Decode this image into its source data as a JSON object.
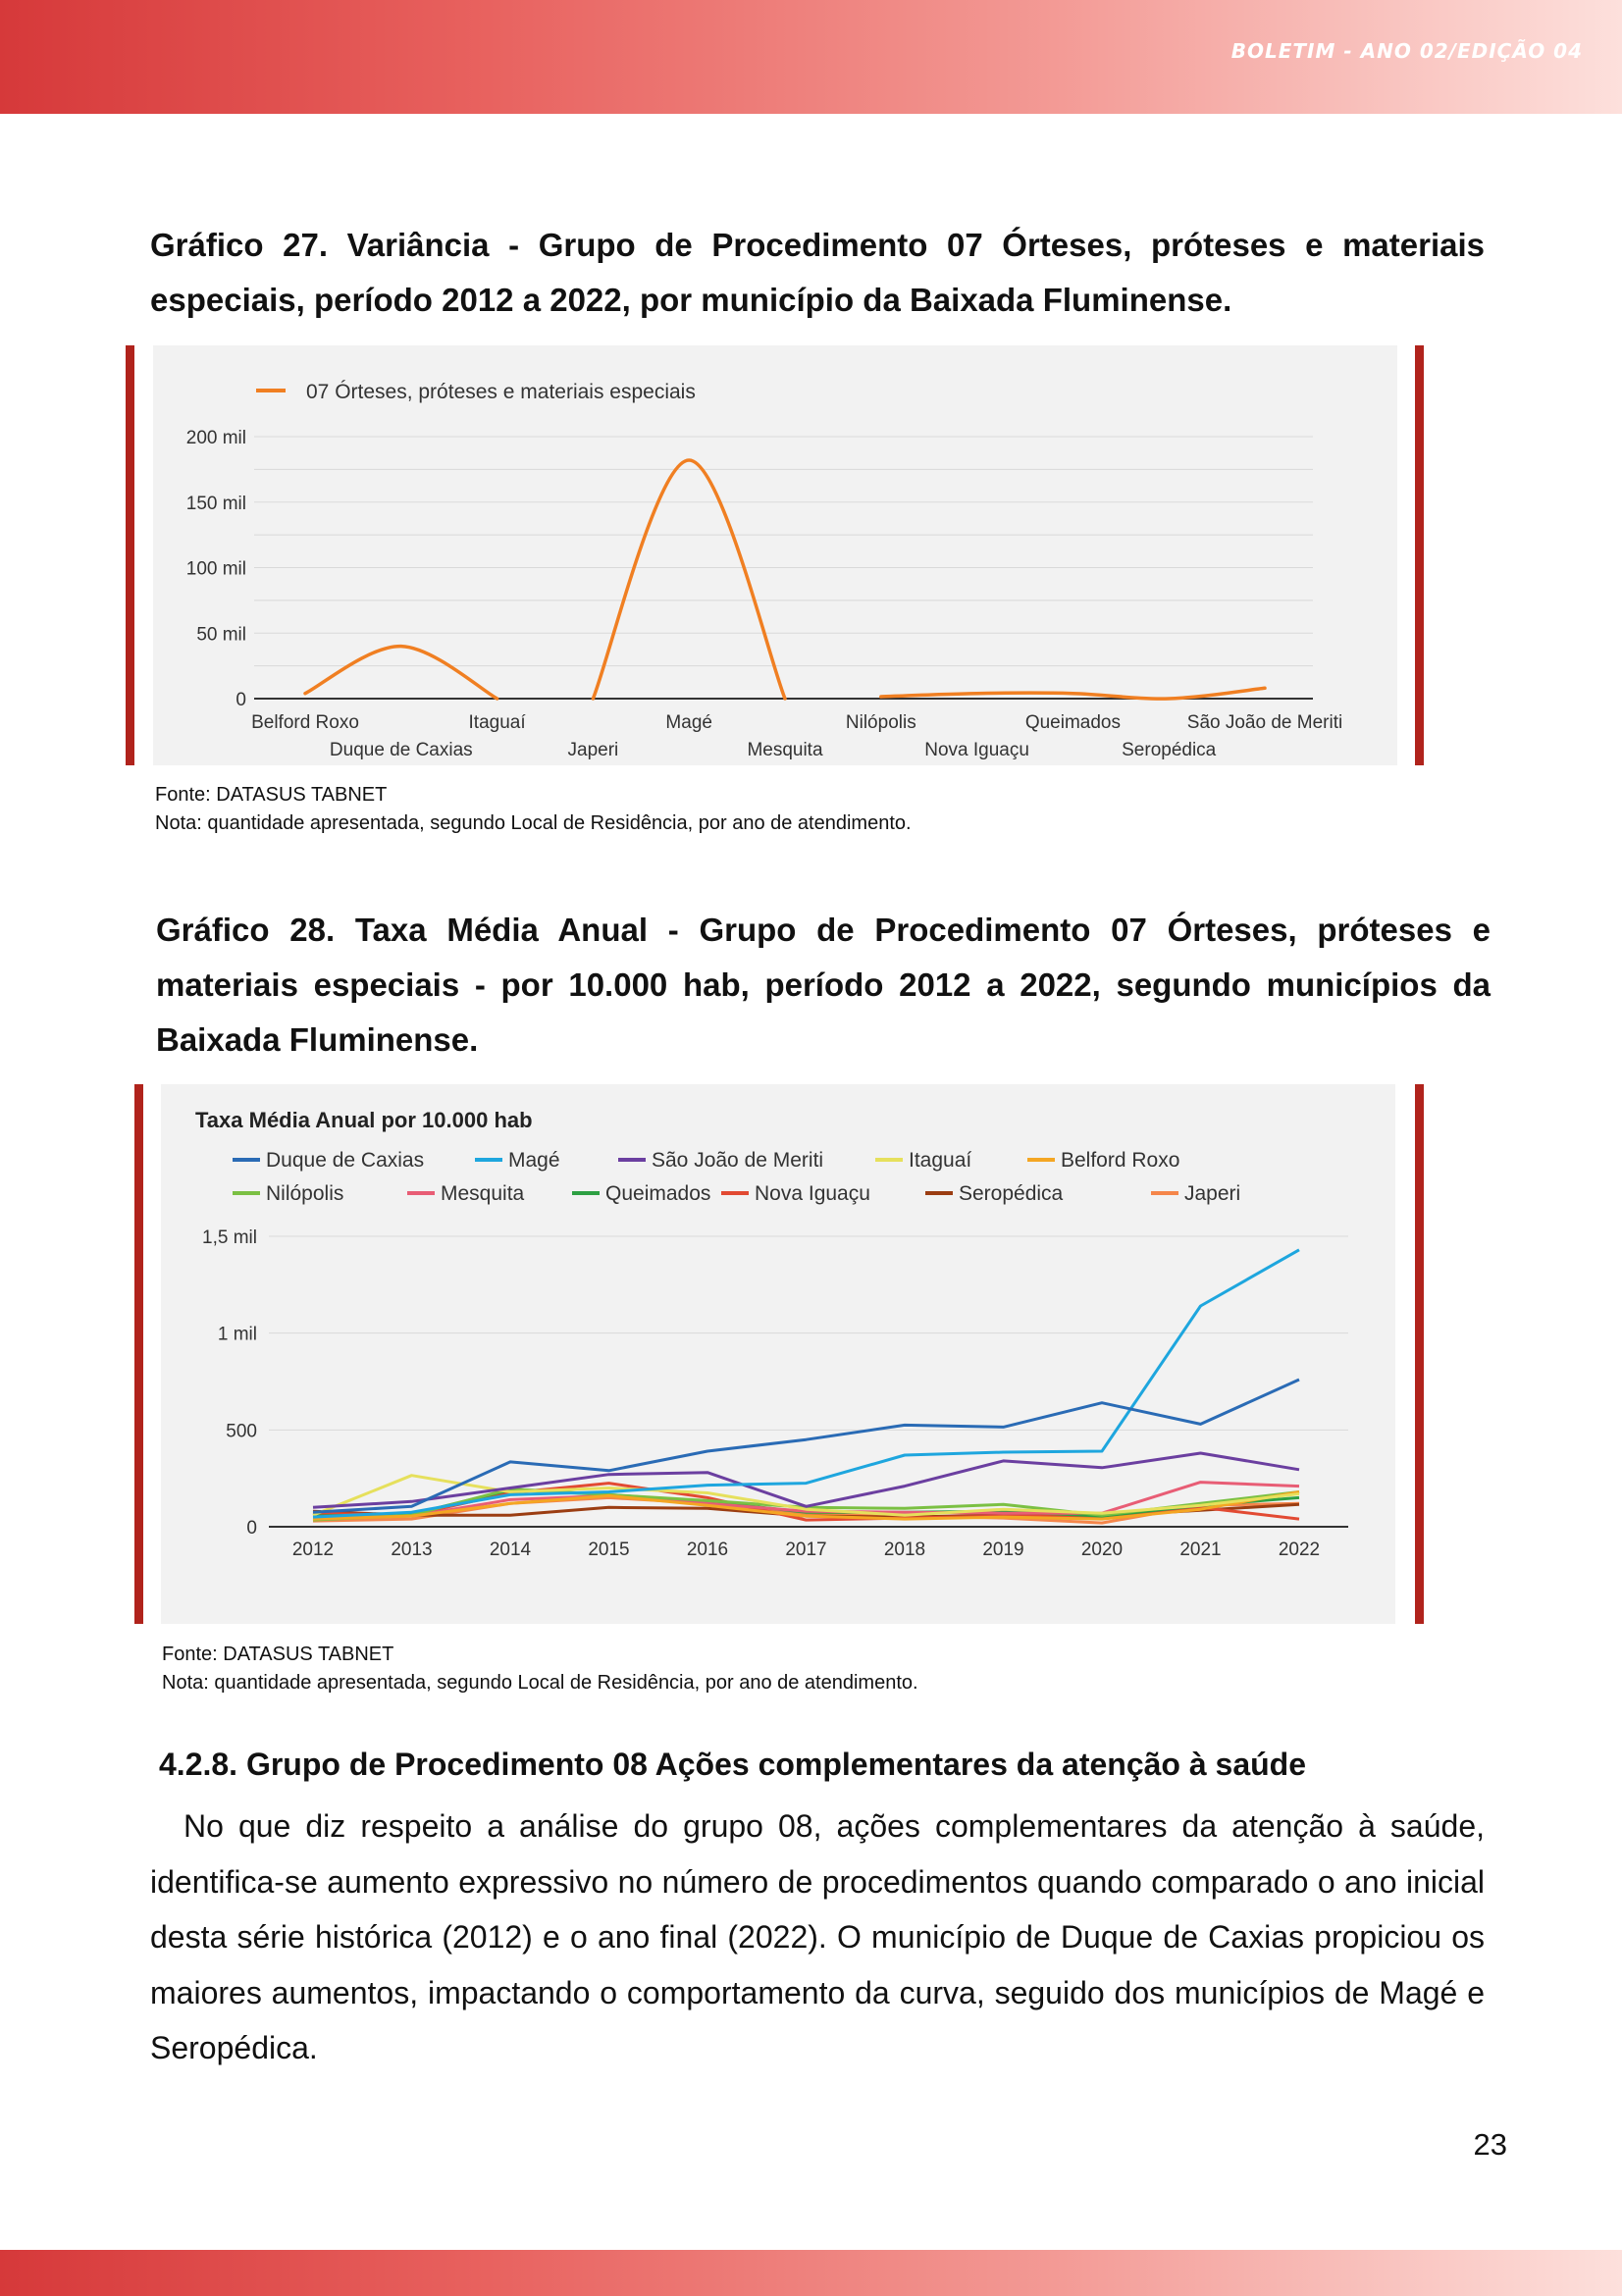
{
  "header": {
    "edition": "BOLETIM - ANO 02/EDIÇÃO 04"
  },
  "caption27": "Gráfico 27. Variância - Grupo de Procedimento 07 Órteses, próteses e materiais especiais, período 2012 a 2022, por município da Baixada Fluminense.",
  "caption28": "Gráfico 28. Taxa Média Anual - Grupo de Procedimento 07 Órteses, próteses e materiais especiais - por 10.000 hab, período 2012 a 2022, segundo municípios da Baixada Fluminense.",
  "note27": {
    "source": "Fonte: DATASUS TABNET",
    "note": "Nota: quantidade apresentada, segundo Local de Residência, por ano de atendimento."
  },
  "note28": {
    "source": "Fonte: DATASUS TABNET",
    "note": "Nota: quantidade apresentada, segundo Local de Residência, por ano de atendimento."
  },
  "section": {
    "heading": "4.2.8. Grupo de Procedimento 08 Ações complementares da atenção à saúde",
    "paragraph": "No que diz respeito a análise do grupo 08, ações complementares da atenção à saúde, identifica-se aumento expressivo no número de procedimentos quando comparado o ano inicial desta série histórica (2012) e o ano final (2022). O município de Duque de Caxias propiciou os maiores aumentos, impactando o comportamento da curva, seguido dos municípios de Magé e Seropédica."
  },
  "page_number": "23",
  "chart_data": [
    {
      "type": "line",
      "title": "",
      "legend": [
        "07 Órteses, próteses e materiais especiais"
      ],
      "legend_position": "top-left",
      "categories": [
        "Belford Roxo",
        "Duque de Caxias",
        "Itaguaí",
        "Japeri",
        "Magé",
        "Mesquita",
        "Nilópolis",
        "Nova Iguaçu",
        "Queimados",
        "Seropédica",
        "São João de Meriti"
      ],
      "series": [
        {
          "name": "07 Órteses, próteses e materiais especiais",
          "color": "#f07f22",
          "values": [
            4000,
            40000,
            0,
            0,
            182000,
            0,
            1500,
            4000,
            4000,
            0,
            8000
          ]
        }
      ],
      "ylim": [
        0,
        200000
      ],
      "yticks": [
        0,
        50000,
        100000,
        150000,
        200000
      ],
      "ytick_labels": [
        "0",
        "50 mil",
        "100 mil",
        "150 mil",
        "200 mil"
      ],
      "grid": true
    },
    {
      "type": "line",
      "title": "Taxa Média Anual por 10.000 hab",
      "legend_position": "top",
      "categories": [
        "2012",
        "2013",
        "2014",
        "2015",
        "2016",
        "2017",
        "2018",
        "2019",
        "2020",
        "2021",
        "2022"
      ],
      "ylim": [
        0,
        1500
      ],
      "yticks": [
        0,
        500,
        1000,
        1500
      ],
      "ytick_labels": [
        "0",
        "500",
        "1 mil",
        "1,5 mil"
      ],
      "grid": true,
      "series": [
        {
          "name": "Duque de Caxias",
          "color": "#2a6bb5",
          "values": [
            75,
            105,
            335,
            290,
            390,
            450,
            525,
            515,
            640,
            530,
            760
          ]
        },
        {
          "name": "Magé",
          "color": "#1ea6de",
          "values": [
            50,
            75,
            165,
            180,
            215,
            225,
            370,
            385,
            390,
            1140,
            1430
          ]
        },
        {
          "name": "São João de Meriti",
          "color": "#6b3fa0",
          "values": [
            100,
            130,
            200,
            270,
            280,
            105,
            210,
            340,
            305,
            380,
            295
          ]
        },
        {
          "name": "Itaguaí",
          "color": "#e6e05c",
          "values": [
            60,
            265,
            180,
            200,
            175,
            90,
            60,
            90,
            70,
            110,
            170
          ]
        },
        {
          "name": "Belford Roxo",
          "color": "#f4a623",
          "values": [
            40,
            55,
            120,
            160,
            110,
            55,
            40,
            50,
            40,
            90,
            180
          ]
        },
        {
          "name": "Nilópolis",
          "color": "#7bc043",
          "values": [
            35,
            60,
            195,
            165,
            135,
            100,
            95,
            115,
            60,
            120,
            180
          ]
        },
        {
          "name": "Mesquita",
          "color": "#e85d75",
          "values": [
            45,
            55,
            140,
            160,
            120,
            80,
            75,
            70,
            70,
            230,
            210
          ]
        },
        {
          "name": "Queimados",
          "color": "#2ea043",
          "values": [
            55,
            65,
            190,
            165,
            130,
            75,
            75,
            80,
            55,
            110,
            150
          ]
        },
        {
          "name": "Nova Iguaçu",
          "color": "#e24a33",
          "values": [
            70,
            60,
            175,
            225,
            150,
            35,
            45,
            55,
            50,
            100,
            40
          ]
        },
        {
          "name": "Seropédica",
          "color": "#9b3d12",
          "values": [
            80,
            60,
            60,
            100,
            95,
            55,
            50,
            60,
            55,
            85,
            115
          ]
        },
        {
          "name": "Japeri",
          "color": "#f5864a",
          "values": [
            30,
            40,
            120,
            150,
            120,
            70,
            55,
            45,
            20,
            110,
            120
          ]
        }
      ]
    }
  ]
}
